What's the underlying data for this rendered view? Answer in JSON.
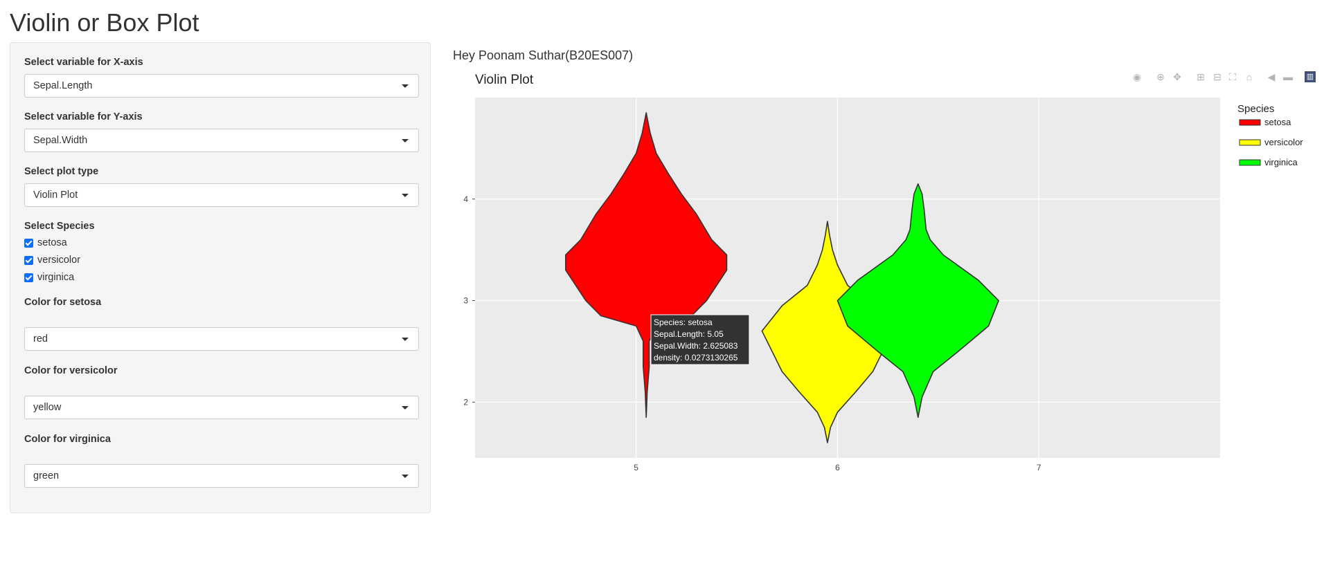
{
  "title": "Violin or Box Plot",
  "greeting": "Hey Poonam Suthar(B20ES007)",
  "sidebar": {
    "x_label": "Select variable for X-axis",
    "x_value": "Sepal.Length",
    "y_label": "Select variable for Y-axis",
    "y_value": "Sepal.Width",
    "type_label": "Select plot type",
    "type_value": "Violin Plot",
    "species_label": "Select Species",
    "species": [
      "setosa",
      "versicolor",
      "virginica"
    ],
    "color_setosa_label": "Color for setosa",
    "color_setosa_value": "red",
    "color_versicolor_label": "Color for versicolor",
    "color_versicolor_value": "yellow",
    "color_virginica_label": "Color for virginica",
    "color_virginica_value": "green"
  },
  "modebar_icons": [
    "camera-icon",
    "zoom-icon",
    "pan-icon",
    "zoom-in-icon",
    "zoom-out-icon",
    "autoscale-icon",
    "reset-axes-icon",
    "hover-closest-icon",
    "hover-compare-icon",
    "plotly-logo-icon"
  ],
  "chart_data": {
    "type": "violin",
    "title": "Violin Plot",
    "xlabel": "",
    "ylabel": "",
    "xlim": [
      4.2,
      7.9
    ],
    "ylim": [
      1.45,
      5.0
    ],
    "x_ticks": [
      5,
      6,
      7
    ],
    "y_ticks": [
      2,
      3,
      4
    ],
    "grid": true,
    "legend_title": "Species",
    "legend_position": "right",
    "series": [
      {
        "name": "setosa",
        "color": "#ff0000",
        "center": 5.05,
        "profile": [
          [
            1.85,
            0.0
          ],
          [
            2.1,
            0.01
          ],
          [
            2.35,
            0.03
          ],
          [
            2.6,
            0.03
          ],
          [
            2.75,
            0.1
          ],
          [
            2.85,
            0.45
          ],
          [
            3.0,
            0.6
          ],
          [
            3.15,
            0.7
          ],
          [
            3.3,
            0.8
          ],
          [
            3.45,
            0.8
          ],
          [
            3.6,
            0.65
          ],
          [
            3.85,
            0.5
          ],
          [
            4.05,
            0.35
          ],
          [
            4.25,
            0.22
          ],
          [
            4.45,
            0.1
          ],
          [
            4.65,
            0.04
          ],
          [
            4.85,
            0.0
          ]
        ]
      },
      {
        "name": "versicolor",
        "color": "#ffff00",
        "center": 5.95,
        "profile": [
          [
            1.6,
            0.0
          ],
          [
            1.75,
            0.03
          ],
          [
            1.9,
            0.1
          ],
          [
            2.1,
            0.28
          ],
          [
            2.3,
            0.45
          ],
          [
            2.5,
            0.55
          ],
          [
            2.7,
            0.65
          ],
          [
            2.95,
            0.45
          ],
          [
            3.15,
            0.2
          ],
          [
            3.35,
            0.1
          ],
          [
            3.5,
            0.05
          ],
          [
            3.65,
            0.02
          ],
          [
            3.78,
            0.0
          ]
        ]
      },
      {
        "name": "virginica",
        "color": "#00ff00",
        "center": 6.4,
        "profile": [
          [
            1.85,
            0.0
          ],
          [
            2.05,
            0.04
          ],
          [
            2.3,
            0.15
          ],
          [
            2.5,
            0.4
          ],
          [
            2.75,
            0.7
          ],
          [
            3.0,
            0.8
          ],
          [
            3.2,
            0.6
          ],
          [
            3.45,
            0.25
          ],
          [
            3.6,
            0.12
          ],
          [
            3.7,
            0.08
          ],
          [
            3.9,
            0.06
          ],
          [
            4.05,
            0.04
          ],
          [
            4.15,
            0.0
          ]
        ]
      }
    ],
    "tooltip": {
      "series": "setosa",
      "lines": [
        "Species: setosa",
        "Sepal.Length: 5.05",
        "Sepal.Width: 2.625083",
        "density: 0.0273130265"
      ],
      "x": 5.05,
      "y": 2.625083
    }
  }
}
